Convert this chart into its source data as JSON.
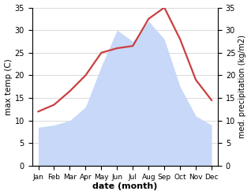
{
  "months": [
    "Jan",
    "Feb",
    "Mar",
    "Apr",
    "May",
    "Jun",
    "Jul",
    "Aug",
    "Sep",
    "Oct",
    "Nov",
    "Dec"
  ],
  "max_temp": [
    12.0,
    13.5,
    16.5,
    20.0,
    25.0,
    26.0,
    26.5,
    32.5,
    35.0,
    28.0,
    19.0,
    14.5
  ],
  "precipitation": [
    8.5,
    9.0,
    10.0,
    13.0,
    22.0,
    30.0,
    27.5,
    32.0,
    28.0,
    17.5,
    11.0,
    9.0
  ],
  "temp_color": "#c94040",
  "precip_fill_color": "#c8d8f8",
  "precip_edge_color": "#c8d8f8",
  "ylim": [
    0,
    35
  ],
  "yticks": [
    0,
    5,
    10,
    15,
    20,
    25,
    30,
    35
  ],
  "xlabel": "date (month)",
  "ylabel_left": "max temp (C)",
  "ylabel_right": "med. precipitation (kg/m2)",
  "bg_color": "#ffffff",
  "grid_color": "#cccccc",
  "figsize": [
    3.18,
    2.47
  ],
  "dpi": 100
}
